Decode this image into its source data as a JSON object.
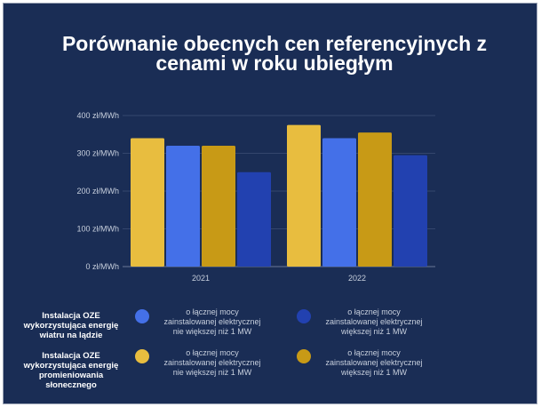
{
  "title": "Porównanie obecnych cen referencyjnych z cenami w roku ubiegłym",
  "colors": {
    "background": "#1a2d55",
    "wind_small": "#4470e8",
    "wind_large": "#2241b0",
    "solar_small": "#e8bd3f",
    "solar_large": "#c89a16"
  },
  "chart_data": {
    "type": "bar",
    "title": "Porównanie obecnych cen referencyjnych z cenami w roku ubiegłym",
    "categories": [
      "2021",
      "2022"
    ],
    "yticks": [
      "0 zł/MWh",
      "100 zł/MWh",
      "200 zł/MWh",
      "300 zł/MWh",
      "400 zł/MWh"
    ],
    "ylim": [
      0,
      400
    ],
    "grid": true,
    "series": [
      {
        "name": "Instalacja OZE wykorzystująca energię promieniowania słonecznego o łącznej mocy zainstalowanej elektrycznej nie większej niż 1 MW",
        "color": "#e8bd3f",
        "values": [
          340,
          375
        ]
      },
      {
        "name": "Instalacja OZE wykorzystująca energię wiatru na lądzie o łącznej mocy zainstalowanej elektrycznej nie większej niż 1 MW",
        "color": "#4470e8",
        "values": [
          320,
          340
        ]
      },
      {
        "name": "Instalacja OZE wykorzystująca energię promieniowania słonecznego o łącznej mocy zainstalowanej elektrycznej większej niż 1 MW",
        "color": "#c89a16",
        "values": [
          320,
          355
        ]
      },
      {
        "name": "Instalacja OZE wykorzystująca energię wiatru na lądzie o łącznej mocy zainstalowanej elektrycznej większej niż 1 MW",
        "color": "#2241b0",
        "values": [
          250,
          295
        ]
      }
    ]
  },
  "legend": {
    "groups": [
      {
        "title": "Instalacja OZE wykorzystująca energię wiatru na lądzie",
        "items": [
          {
            "label": "o łącznej mocy zainstalowanej elektrycznej nie większej niż 1 MW",
            "color": "#4470e8"
          },
          {
            "label": "o łącznej mocy zainstalowanej elektrycznej większej niż 1 MW",
            "color": "#2241b0"
          }
        ]
      },
      {
        "title": "Instalacja OZE wykorzystująca energię promieniowania słonecznego",
        "items": [
          {
            "label": "o łącznej mocy zainstalowanej elektrycznej nie większej niż 1 MW",
            "color": "#e8bd3f"
          },
          {
            "label": "o łącznej mocy zainstalowanej elektrycznej większej niż 1 MW",
            "color": "#c89a16"
          }
        ]
      }
    ]
  }
}
